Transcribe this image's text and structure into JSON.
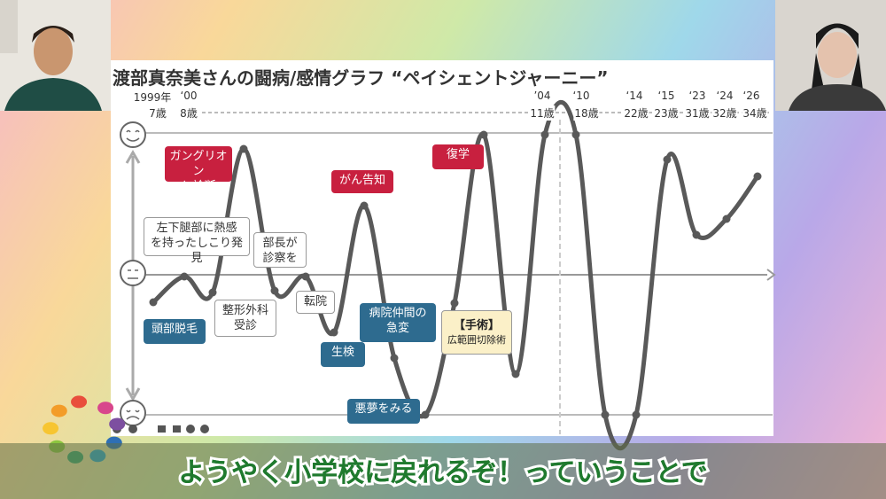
{
  "slide": {
    "title": "渡部真奈美さんの闘病/感情グラフ “ペイシェントジャーニー”",
    "timeline": [
      {
        "year": "1999年",
        "age": "7歳"
      },
      {
        "year": "‘00",
        "age": "8歳"
      },
      {
        "year": "’04",
        "age": "11歳"
      },
      {
        "year": "‘10",
        "age": "18歳"
      },
      {
        "year": "‘14",
        "age": "22歳"
      },
      {
        "year": "‘15",
        "age": "23歳"
      },
      {
        "year": "‘23",
        "age": "31歳"
      },
      {
        "year": "‘24",
        "age": "32歳"
      },
      {
        "year": "‘26",
        "age": "34歳"
      }
    ],
    "annotations": [
      {
        "text": "ガングリオン\nと診断",
        "kind": "red"
      },
      {
        "text": "がん告知",
        "kind": "red"
      },
      {
        "text": "復学",
        "kind": "red"
      },
      {
        "text": "左下腿部に熱感\nを持ったしこり発見",
        "kind": "white"
      },
      {
        "text": "部長が\n診察を",
        "kind": "white"
      },
      {
        "text": "整形外科\n受診",
        "kind": "white"
      },
      {
        "text": "転院",
        "kind": "white"
      },
      {
        "text": "頭部脱毛",
        "kind": "blue"
      },
      {
        "text": "生検",
        "kind": "blue"
      },
      {
        "text": "病院仲間の\n急変",
        "kind": "blue"
      },
      {
        "text": "悪夢をみる",
        "kind": "blue"
      }
    ],
    "surgery": {
      "title": "【手術】",
      "detail": "広範囲切除術"
    }
  },
  "caption": "ようやく小学校に戻れるぞ！っていうことで"
}
